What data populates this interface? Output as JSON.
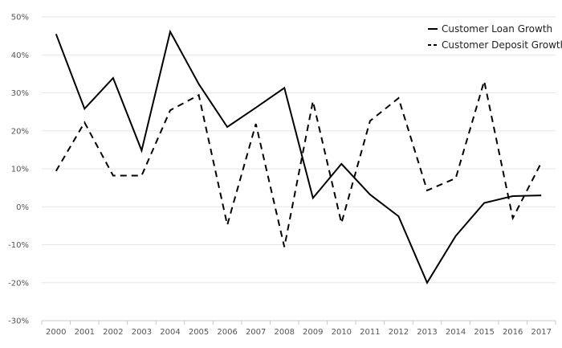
{
  "chart_data": {
    "type": "line",
    "title": "",
    "xlabel": "",
    "ylabel": "",
    "x": [
      "2000",
      "2001",
      "2002",
      "2003",
      "2004",
      "2005",
      "2006",
      "2007",
      "2008",
      "2009",
      "2010",
      "2011",
      "2012",
      "2013",
      "2014",
      "2015",
      "2016",
      "2017"
    ],
    "y_ticks": [
      50,
      40,
      30,
      20,
      10,
      0,
      -10,
      -20,
      -30
    ],
    "y_tick_labels": [
      "50%",
      "40%",
      "30%",
      "20%",
      "10%",
      "0%",
      "-10%",
      "-20%",
      "-30%"
    ],
    "ylim": [
      -30,
      50
    ],
    "grid": true,
    "legend_position": "top-right",
    "series": [
      {
        "name": "Customer Loan Growth",
        "style": "solid",
        "color": "#000000",
        "values": [
          45.5,
          25.8,
          33.9,
          14.8,
          46.1,
          32.3,
          21.0,
          26.1,
          31.3,
          2.3,
          11.3,
          3.2,
          -2.5,
          -20.0,
          -7.7,
          1.0,
          2.8,
          3.0
        ]
      },
      {
        "name": "Customer Deposit Growth",
        "style": "dashed",
        "color": "#000000",
        "values": [
          9.4,
          22.2,
          8.2,
          8.2,
          25.4,
          29.4,
          -4.8,
          21.8,
          -10.6,
          27.8,
          -4.3,
          22.6,
          28.6,
          4.3,
          7.5,
          33.1,
          -3.0,
          11.6
        ]
      }
    ]
  }
}
